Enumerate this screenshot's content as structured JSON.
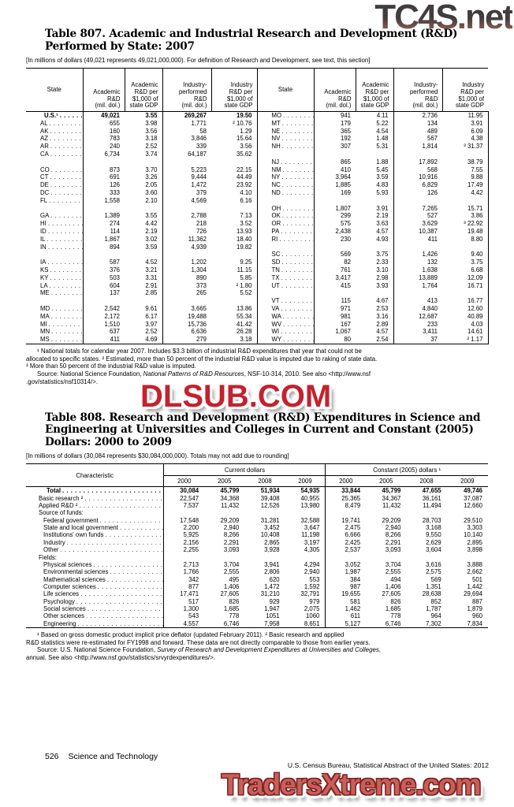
{
  "watermarks": {
    "top_right": "TC4S.net",
    "middle": "DLSUB.COM",
    "bottom": "TradersXtreme.com"
  },
  "table807": {
    "title_lines": [
      "Table 807. Academic and Industrial Research and Development (R&D)",
      "Performed by State: 2007"
    ],
    "note": "[In millions of dollars (49,021 represents 49,021,000,000). For definition of Research and Development, see text, this section]",
    "header": {
      "state": "State",
      "cols": [
        "Academic\nR&D\n(mil. dol.)",
        "Academic\nR&D per\n$1,000 of\nstate GDP",
        "Industry-\nperformed\nR&D\n(mil. dol.)",
        "Industry\nR&D per\n$1,000 of\nstate GDP"
      ]
    },
    "rows": [
      {
        "l": [
          "U.S.¹",
          "49,021",
          "3.55",
          "269,267",
          "19.50"
        ],
        "r": [
          "MO",
          "941",
          "4.11",
          "2,736",
          "11.95"
        ],
        "lb": true
      },
      {
        "l": [
          "AL",
          "655",
          "3.98",
          "1,771",
          "² 10.76"
        ],
        "r": [
          "MT",
          "179",
          "5.22",
          "134",
          "3.91"
        ]
      },
      {
        "l": [
          "AK",
          "160",
          "3.56",
          "58",
          "1.29"
        ],
        "r": [
          "NE",
          "365",
          "4.54",
          "489",
          "6.09"
        ]
      },
      {
        "l": [
          "AZ",
          "783",
          "3.18",
          "3,846",
          "15.64"
        ],
        "r": [
          "NV",
          "192",
          "1.48",
          "567",
          "4.38"
        ]
      },
      {
        "l": [
          "AR",
          "240",
          "2.52",
          "339",
          "3.56"
        ],
        "r": [
          "NH",
          "307",
          "5.31",
          "1,814",
          "³ 31.37"
        ]
      },
      {
        "l": [
          "CA",
          "6,734",
          "3.74",
          "64,187",
          "35.62"
        ],
        "r": null
      },
      {
        "l": null,
        "r": [
          "NJ",
          "865",
          "1.88",
          "17,892",
          "38.79"
        ]
      },
      {
        "l": [
          "CO",
          "873",
          "3.70",
          "5,223",
          "22.15"
        ],
        "r": [
          "NM",
          "410",
          "5.45",
          "568",
          "7.55"
        ]
      },
      {
        "l": [
          "CT",
          "691",
          "3.26",
          "9,444",
          "44.49"
        ],
        "r": [
          "NY",
          "3,964",
          "3.59",
          "10,916",
          "9.88"
        ]
      },
      {
        "l": [
          "DE",
          "126",
          "2.05",
          "1,472",
          "23.92"
        ],
        "r": [
          "NC",
          "1,885",
          "4.83",
          "6,829",
          "17.49"
        ]
      },
      {
        "l": [
          "DC",
          "333",
          "3.60",
          "379",
          "4.10"
        ],
        "r": [
          "ND",
          "169",
          "5.93",
          "126",
          "4.42"
        ]
      },
      {
        "l": [
          "FL",
          "1,558",
          "2.10",
          "4,569",
          "6.16"
        ],
        "r": null
      },
      {
        "l": null,
        "r": [
          "OH",
          "1,807",
          "3.91",
          "7,265",
          "15.71"
        ]
      },
      {
        "l": [
          "GA",
          "1,389",
          "3.55",
          "2,788",
          "7.13"
        ],
        "r": [
          "OK",
          "299",
          "2.19",
          "527",
          "3.86"
        ]
      },
      {
        "l": [
          "HI",
          "274",
          "4.42",
          "218",
          "3.52"
        ],
        "r": [
          "OR",
          "575",
          "3.63",
          "3,629",
          "³ 22.92"
        ]
      },
      {
        "l": [
          "ID",
          "114",
          "2.19",
          "726",
          "13.93"
        ],
        "r": [
          "PA",
          "2,438",
          "4.57",
          "10,387",
          "19.48"
        ]
      },
      {
        "l": [
          "IL",
          "1,867",
          "3.02",
          "11,362",
          "18.40"
        ],
        "r": [
          "RI",
          "230",
          "4.93",
          "411",
          "8.80"
        ]
      },
      {
        "l": [
          "IN",
          "894",
          "3.59",
          "4,939",
          "19.82"
        ],
        "r": null
      },
      {
        "l": null,
        "r": [
          "SC",
          "569",
          "3.75",
          "1,426",
          "9.40"
        ]
      },
      {
        "l": [
          "IA",
          "587",
          "4.52",
          "1,202",
          "9.25"
        ],
        "r": [
          "SD",
          "82",
          "2.33",
          "132",
          "3.75"
        ]
      },
      {
        "l": [
          "KS",
          "376",
          "3.21",
          "1,304",
          "11.15"
        ],
        "r": [
          "TN",
          "761",
          "3.10",
          "1,638",
          "6.68"
        ]
      },
      {
        "l": [
          "KY",
          "503",
          "3.31",
          "890",
          "5.85"
        ],
        "r": [
          "TX",
          "3,417",
          "2.98",
          "13,889",
          "12.09"
        ]
      },
      {
        "l": [
          "LA",
          "604",
          "2.91",
          "373",
          "² 1.80"
        ],
        "r": [
          "UT",
          "415",
          "3.93",
          "1,764",
          "16.71"
        ]
      },
      {
        "l": [
          "ME",
          "137",
          "2.85",
          "265",
          "5.52"
        ],
        "r": null
      },
      {
        "l": null,
        "r": [
          "VT",
          "115",
          "4.67",
          "413",
          "16.77"
        ]
      },
      {
        "l": [
          "MD",
          "2,542",
          "9.61",
          "3,665",
          "13.86"
        ],
        "r": [
          "VA",
          "971",
          "2.53",
          "4,840",
          "12.60"
        ]
      },
      {
        "l": [
          "MA",
          "2,172",
          "6.17",
          "19,488",
          "55.34"
        ],
        "r": [
          "WA",
          "981",
          "3.16",
          "12,687",
          "40.89"
        ]
      },
      {
        "l": [
          "MI",
          "1,510",
          "3.97",
          "15,736",
          "41.42"
        ],
        "r": [
          "WV",
          "167",
          "2.89",
          "233",
          "4.03"
        ]
      },
      {
        "l": [
          "MN",
          "637",
          "2.52",
          "6,636",
          "26.28"
        ],
        "r": [
          "WI",
          "1,067",
          "4.57",
          "3,411",
          "14.61"
        ]
      },
      {
        "l": [
          "MS",
          "411",
          "4.69",
          "279",
          "3.18"
        ],
        "r": [
          "WY",
          "80",
          "2.54",
          "37",
          "² 1.17"
        ]
      }
    ],
    "footnote_lines": [
      "¹ National totals for calendar year 2007.  Includes $3.3 billion of industrial R&D expenditures that year that could not be",
      "allocated to specific states. ² Estimated, more than 50 percent of the industrial R&D value is imputed due to raking of state data.",
      "³ More than 50 percent of the industrial R&D value is imputed."
    ],
    "source_prefix": "Source: National Science Foundation, ",
    "source_italic": "National Patterns of R&D Resources",
    "source_suffix": ", NSF-10-314, 2010. See also <http://www.nsf",
    "source_line2": ".gov/statistics/nsf10314/>."
  },
  "table808": {
    "title_lines": [
      "Table 808. Research and Development (R&D) Expenditures in Science and",
      "Engineering at Universities and Colleges in Current and Constant (2005)",
      "Dollars: 2000 to 2009"
    ],
    "note": "[In millions of dollars (30,084 represents $30,084,000,000). Totals may not add due to rounding]",
    "header": {
      "characteristic": "Characteristic",
      "group1": "Current dollars",
      "group2": "Constant (2005) dollars ¹",
      "years": [
        "2000",
        "2005",
        "2008",
        "2009",
        "2000",
        "2005",
        "2008",
        "2009"
      ]
    },
    "rows": [
      {
        "label": "Total",
        "style": "total",
        "v": [
          "30,084",
          "45,799",
          "51,934",
          "54,935",
          "33,844",
          "45,799",
          "47,655",
          "49,746"
        ]
      },
      {
        "label": "Basic research ²",
        "style": "main",
        "v": [
          "22,547",
          "34,368",
          "39,408",
          "40,955",
          "25,365",
          "34,367",
          "36,161",
          "37,087"
        ]
      },
      {
        "label": "Applied R&D ²",
        "style": "main",
        "v": [
          "7,537",
          "11,432",
          "12,526",
          "13,980",
          "8,479",
          "11,432",
          "11,494",
          "12,660"
        ]
      },
      {
        "label": "Source of funds:",
        "style": "section",
        "v": null
      },
      {
        "label": "Federal government",
        "style": "sub",
        "v": [
          "17,548",
          "29,209",
          "31,281",
          "32,588",
          "19,741",
          "29,209",
          "28,703",
          "29,510"
        ]
      },
      {
        "label": "State and local government",
        "style": "sub",
        "v": [
          "2,200",
          "2,940",
          "3,452",
          "3,647",
          "2,475",
          "2,940",
          "3,168",
          "3,303"
        ]
      },
      {
        "label": "Institutions' own funds",
        "style": "sub",
        "v": [
          "5,925",
          "8,266",
          "10,408",
          "11,198",
          "6,666",
          "8,266",
          "9,550",
          "10,140"
        ]
      },
      {
        "label": "Industry",
        "style": "sub",
        "v": [
          "2,156",
          "2,291",
          "2,865",
          "3,197",
          "2,425",
          "2,291",
          "2,629",
          "2,895"
        ]
      },
      {
        "label": "Other",
        "style": "sub",
        "v": [
          "2,255",
          "3,093",
          "3,928",
          "4,305",
          "2,537",
          "3,093",
          "3,604",
          "3,898"
        ]
      },
      {
        "label": "Fields:",
        "style": "section",
        "v": null
      },
      {
        "label": "Physical sciences",
        "style": "sub",
        "v": [
          "2,713",
          "3,704",
          "3,941",
          "4,294",
          "3,052",
          "3,704",
          "3,616",
          "3,888"
        ]
      },
      {
        "label": "Environmental sciences",
        "style": "sub",
        "v": [
          "1,766",
          "2,555",
          "2,806",
          "2,940",
          "1,987",
          "2,555",
          "2,575",
          "2,662"
        ]
      },
      {
        "label": "Mathematical sciences",
        "style": "sub",
        "v": [
          "342",
          "495",
          "620",
          "553",
          "384",
          "494",
          "569",
          "501"
        ]
      },
      {
        "label": "Computer sciences",
        "style": "sub",
        "v": [
          "877",
          "1,406",
          "1,472",
          "1,592",
          "987",
          "1,406",
          "1,351",
          "1,442"
        ]
      },
      {
        "label": "Life sciences",
        "style": "sub",
        "v": [
          "17,471",
          "27,605",
          "31,210",
          "32,791",
          "19,655",
          "27,605",
          "28,638",
          "29,694"
        ]
      },
      {
        "label": "Psychology",
        "style": "sub",
        "v": [
          "517",
          "826",
          "929",
          "979",
          "581",
          "826",
          "852",
          "887"
        ]
      },
      {
        "label": "Social sciences",
        "style": "sub",
        "v": [
          "1,300",
          "1,685",
          "1,947",
          "2,075",
          "1,462",
          "1,685",
          "1,787",
          "1,879"
        ]
      },
      {
        "label": "Other sciences",
        "style": "sub",
        "v": [
          "543",
          "778",
          "1051",
          "1060",
          "611",
          "778",
          "964",
          "960"
        ]
      },
      {
        "label": "Engineering",
        "style": "sub",
        "v": [
          "4,557",
          "6,746",
          "7,958",
          "8,651",
          "5,127",
          "6,746",
          "7,302",
          "7,834"
        ]
      }
    ],
    "footnote_lines": [
      "¹ Based on gross domestic product implicit price deflator (updated February 2011). ² Basic research and applied",
      "R&D statistics were re-estimated for FY1998 and forward. These data are not directly comparable to those from earlier years."
    ],
    "source_prefix": "Source: U.S. National Science Foundation, ",
    "source_italic": "Survey of Research and Development Expenditures at Universities and Colleges",
    "source_suffix": ",",
    "source_line2": "annual. See also <http://www.nsf.gov/statistics/srvyrdexpenditures/>."
  },
  "footer": {
    "page_number": "526",
    "section": "Science and Technology",
    "credit": "U.S. Census Bureau, Statistical Abstract of the United States: 2012"
  },
  "colors": {
    "watermark_red": "#c5212e",
    "watermark_salmon": "#c95f5c",
    "watermark_gray": "#413d3e",
    "text": "#000000"
  }
}
